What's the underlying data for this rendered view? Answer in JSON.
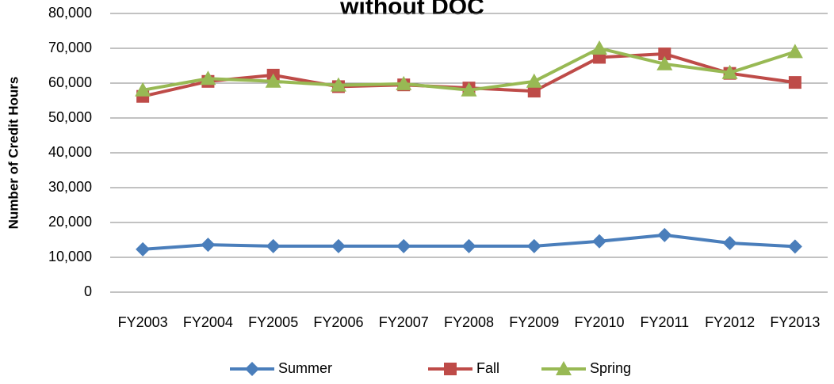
{
  "chart_data": {
    "type": "line",
    "title": "without DOC",
    "y_label": "Number of Credit Hours",
    "categories": [
      "FY2003",
      "FY2004",
      "FY2005",
      "FY2006",
      "FY2007",
      "FY2008",
      "FY2009",
      "FY2010",
      "FY2011",
      "FY2012",
      "FY2013"
    ],
    "series": [
      {
        "name": "Summer",
        "color": "#4a7ebb",
        "marker": "diamond",
        "values": [
          12300,
          13600,
          13200,
          13200,
          13200,
          13200,
          13200,
          14600,
          16400,
          14100,
          13100
        ]
      },
      {
        "name": "Fall",
        "color": "#be4b48",
        "marker": "square",
        "values": [
          56200,
          60500,
          62300,
          59000,
          59500,
          58600,
          57700,
          67400,
          68400,
          62800,
          60200
        ]
      },
      {
        "name": "Spring",
        "color": "#98b954",
        "marker": "triangle",
        "values": [
          58000,
          61300,
          60500,
          59400,
          59800,
          58000,
          60500,
          70000,
          65500,
          63000,
          69000
        ]
      }
    ],
    "ylim": [
      0,
      80000
    ],
    "yticks": [
      0,
      {
        "value": 10000,
        "label": "10,000"
      },
      {
        "value": 20000,
        "label": "20,000"
      },
      {
        "value": 30000,
        "label": "30,000"
      },
      {
        "value": 40000,
        "label": "40,000"
      },
      {
        "value": 50000,
        "label": "50,000"
      },
      {
        "value": 60000,
        "label": "60,000"
      },
      {
        "value": 70000,
        "label": "70,000"
      },
      {
        "value": 80000,
        "label": "80,000"
      }
    ],
    "grid": true,
    "legend": "bottom"
  }
}
